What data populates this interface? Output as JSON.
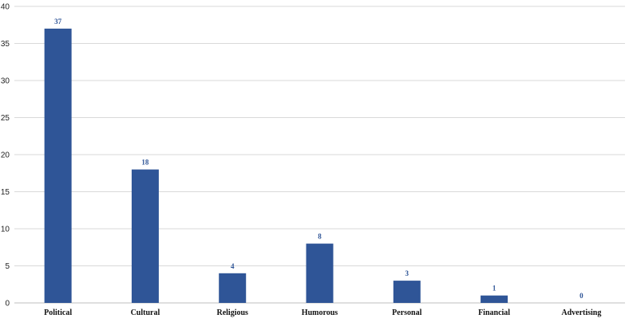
{
  "chart_data": {
    "type": "bar",
    "categories": [
      "Political",
      "Cultural",
      "Religious",
      "Humorous",
      "Personal",
      "Financial",
      "Advertising"
    ],
    "values": [
      37,
      18,
      4,
      8,
      3,
      1,
      0
    ],
    "data_labels": [
      "37",
      "18",
      "4",
      "8",
      "3",
      "1",
      "0"
    ],
    "y_ticks": [
      "0",
      "5",
      "10",
      "15",
      "20",
      "25",
      "30",
      "35",
      "40"
    ],
    "title": "",
    "xlabel": "",
    "ylabel": "",
    "ylim": [
      0,
      40
    ],
    "grid": true,
    "legend": "none",
    "bar_color": "#2F5597",
    "label_color": "#2F5597"
  }
}
